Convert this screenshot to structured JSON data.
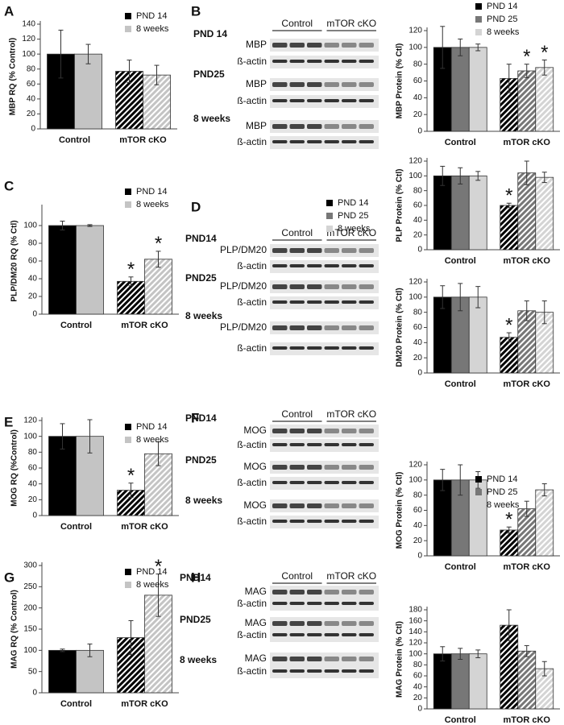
{
  "panels": [
    "A",
    "B",
    "C",
    "D",
    "E",
    "F",
    "G",
    "H"
  ],
  "blots": [
    {
      "headers": [
        "Control",
        "mTOR cKO"
      ],
      "groups": [
        {
          "name": "PND 14",
          "rows": [
            "MBP",
            "ß-actin"
          ]
        },
        {
          "name": "PND25",
          "rows": [
            "MBP",
            "ß-actin"
          ]
        },
        {
          "name": "8 weeks",
          "rows": [
            "MBP",
            "ß-actin"
          ]
        }
      ]
    },
    {
      "headers": [
        "Control",
        "mTOR cKO"
      ],
      "groups": [
        {
          "name": "PND14",
          "rows": [
            "PLP/DM20",
            "ß-actin"
          ]
        },
        {
          "name": "PND25",
          "rows": [
            "PLP/DM20",
            "ß-actin"
          ]
        },
        {
          "name": "8 weeks",
          "rows": [
            "PLP/DM20",
            "ß-actin"
          ]
        }
      ]
    },
    {
      "headers": [
        "Control",
        "mTOR cKO"
      ],
      "groups": [
        {
          "name": "PND14",
          "rows": [
            "MOG",
            "ß-actin"
          ]
        },
        {
          "name": "PND25",
          "rows": [
            "MOG",
            "ß-actin"
          ]
        },
        {
          "name": "8 weeks",
          "rows": [
            "MOG",
            "ß-actin"
          ]
        }
      ]
    },
    {
      "headers": [
        "Control",
        "mTOR cKO"
      ],
      "groups": [
        {
          "name": "PND14",
          "rows": [
            "MAG",
            "ß-actin"
          ]
        },
        {
          "name": "PND25",
          "rows": [
            "MAG",
            "ß-actin"
          ]
        },
        {
          "name": "8 weeks",
          "rows": [
            "MAG",
            "ß-actin"
          ]
        }
      ]
    }
  ],
  "chart_data": [
    {
      "type": "bar",
      "y_label": "MBP RQ (% Control)",
      "categories": [
        "Control",
        "mTOR cKO"
      ],
      "hatch": [
        false,
        true
      ],
      "legend": "upper right",
      "series": [
        {
          "name": "PND 14",
          "color": "#000000",
          "values": [
            100,
            77
          ],
          "errors": [
            32,
            15
          ],
          "annotations": [
            null,
            null
          ]
        },
        {
          "name": "8 weeks",
          "color": "#c4c4c4",
          "values": [
            100,
            72
          ],
          "errors": [
            13,
            13
          ],
          "annotations": [
            null,
            null
          ]
        }
      ],
      "ylim": [
        0,
        140
      ],
      "yticks": [
        0,
        20,
        40,
        60,
        80,
        100,
        120,
        140
      ]
    },
    {
      "type": "bar",
      "y_label": "MBP Protein (% Ctl)",
      "categories": [
        "Control",
        "mTOR cKO"
      ],
      "hatch": [
        false,
        true
      ],
      "legend": "top",
      "series": [
        {
          "name": "PND 14",
          "color": "#000000",
          "values": [
            100,
            63
          ],
          "errors": [
            25,
            17
          ],
          "annotations": [
            null,
            null
          ]
        },
        {
          "name": "PND 25",
          "color": "#777777",
          "values": [
            100,
            72
          ],
          "errors": [
            10,
            8
          ],
          "annotations": [
            null,
            "*"
          ]
        },
        {
          "name": "8 weeks",
          "color": "#d4d4d4",
          "values": [
            100,
            76
          ],
          "errors": [
            4,
            9
          ],
          "annotations": [
            null,
            "*"
          ]
        }
      ],
      "ylim": [
        0,
        120
      ],
      "yticks": [
        0,
        20,
        40,
        60,
        80,
        100,
        120
      ]
    },
    {
      "type": "bar",
      "y_label": "PLP/DM20 RQ (% Ctl)",
      "categories": [
        "Control",
        "mTOR cKO"
      ],
      "hatch": [
        false,
        true
      ],
      "legend": "upper right",
      "series": [
        {
          "name": "PND 14",
          "color": "#000000",
          "values": [
            100,
            37
          ],
          "errors": [
            5,
            5
          ],
          "annotations": [
            null,
            "*"
          ]
        },
        {
          "name": "8 weeks",
          "color": "#c4c4c4",
          "values": [
            100,
            62
          ],
          "errors": [
            1,
            9
          ],
          "annotations": [
            null,
            "*"
          ]
        }
      ],
      "ylim": [
        0,
        120
      ],
      "yticks": [
        0,
        20,
        40,
        60,
        80,
        100
      ]
    },
    {
      "type": "bar",
      "y_label": "PLP Protein (% Ctl)",
      "categories": [
        "Control",
        "mTOR cKO"
      ],
      "hatch": [
        false,
        true
      ],
      "legend": "left",
      "series": [
        {
          "name": "PND 14",
          "color": "#000000",
          "values": [
            100,
            60
          ],
          "errors": [
            13,
            3
          ],
          "annotations": [
            null,
            "*"
          ]
        },
        {
          "name": "PND 25",
          "color": "#777777",
          "values": [
            100,
            104
          ],
          "errors": [
            11,
            16
          ],
          "annotations": [
            null,
            null
          ]
        },
        {
          "name": "8 weeks",
          "color": "#d4d4d4",
          "values": [
            100,
            98
          ],
          "errors": [
            6,
            7
          ],
          "annotations": [
            null,
            null
          ]
        }
      ],
      "ylim": [
        0,
        120
      ],
      "yticks": [
        0,
        20,
        40,
        60,
        80,
        100,
        120
      ]
    },
    {
      "type": "bar",
      "y_label": "DM20 Protein (% Ctl)",
      "categories": [
        "Control",
        "mTOR cKO"
      ],
      "hatch": [
        false,
        true
      ],
      "series": [
        {
          "name": "PND 14",
          "color": "#000000",
          "values": [
            100,
            47
          ],
          "errors": [
            15,
            6
          ],
          "annotations": [
            null,
            "*"
          ]
        },
        {
          "name": "PND 25",
          "color": "#777777",
          "values": [
            100,
            82
          ],
          "errors": [
            18,
            13
          ],
          "annotations": [
            null,
            null
          ]
        },
        {
          "name": "8 weeks",
          "color": "#d4d4d4",
          "values": [
            100,
            80
          ],
          "errors": [
            14,
            15
          ],
          "annotations": [
            null,
            null
          ]
        }
      ],
      "ylim": [
        0,
        120
      ],
      "yticks": [
        0,
        20,
        40,
        60,
        80,
        100,
        120
      ]
    },
    {
      "type": "bar",
      "y_label": "MOG RQ (%Control)",
      "categories": [
        "Control",
        "mTOR cKO"
      ],
      "hatch": [
        false,
        true
      ],
      "legend": "upper right",
      "series": [
        {
          "name": "PND 14",
          "color": "#000000",
          "values": [
            100,
            32
          ],
          "errors": [
            16,
            9
          ],
          "annotations": [
            null,
            "*"
          ]
        },
        {
          "name": "8 weeks",
          "color": "#c4c4c4",
          "values": [
            100,
            78
          ],
          "errors": [
            21,
            15
          ],
          "annotations": [
            null,
            null
          ]
        }
      ],
      "ylim": [
        0,
        120
      ],
      "yticks": [
        0,
        20,
        40,
        60,
        80,
        100,
        120
      ]
    },
    {
      "type": "bar",
      "y_label": "MOG Protein (% Ctl)",
      "categories": [
        "Control",
        "mTOR cKO"
      ],
      "hatch": [
        false,
        true
      ],
      "legend": "right",
      "series": [
        {
          "name": "PND 14",
          "color": "#000000",
          "values": [
            100,
            34
          ],
          "errors": [
            14,
            4
          ],
          "annotations": [
            null,
            "*"
          ]
        },
        {
          "name": "PND 25",
          "color": "#777777",
          "values": [
            100,
            62
          ],
          "errors": [
            20,
            10
          ],
          "annotations": [
            null,
            null
          ]
        },
        {
          "name": "8 weeks",
          "color": "#d4d4d4",
          "values": [
            100,
            87
          ],
          "errors": [
            11,
            8
          ],
          "annotations": [
            null,
            null
          ]
        }
      ],
      "ylim": [
        0,
        120
      ],
      "yticks": [
        0,
        20,
        40,
        60,
        80,
        100,
        120
      ]
    },
    {
      "type": "bar",
      "y_label": "MAG RQ (% Control)",
      "categories": [
        "Control",
        "mTOR cKO"
      ],
      "hatch": [
        false,
        true
      ],
      "legend": "upper right",
      "series": [
        {
          "name": "PND 14",
          "color": "#000000",
          "values": [
            100,
            130
          ],
          "errors": [
            3,
            40
          ],
          "annotations": [
            null,
            null
          ]
        },
        {
          "name": "8 weeks",
          "color": "#c4c4c4",
          "values": [
            100,
            230
          ],
          "errors": [
            15,
            50
          ],
          "annotations": [
            null,
            "*"
          ]
        }
      ],
      "ylim": [
        0,
        300
      ],
      "yticks": [
        0,
        50,
        100,
        150,
        200,
        250,
        300
      ]
    },
    {
      "type": "bar",
      "y_label": "MAG Protein (% Ctl)",
      "categories": [
        "Control",
        "mTOR cKO"
      ],
      "hatch": [
        false,
        true
      ],
      "series": [
        {
          "name": "PND 14",
          "color": "#000000",
          "values": [
            100,
            152
          ],
          "errors": [
            13,
            28
          ],
          "annotations": [
            null,
            null
          ]
        },
        {
          "name": "PND 25",
          "color": "#777777",
          "values": [
            100,
            105
          ],
          "errors": [
            10,
            10
          ],
          "annotations": [
            null,
            null
          ]
        },
        {
          "name": "8 weeks",
          "color": "#d4d4d4",
          "values": [
            100,
            73
          ],
          "errors": [
            7,
            13
          ],
          "annotations": [
            null,
            null
          ]
        }
      ],
      "ylim": [
        0,
        180
      ],
      "yticks": [
        0,
        20,
        40,
        60,
        80,
        100,
        120,
        140,
        160,
        180
      ]
    }
  ]
}
